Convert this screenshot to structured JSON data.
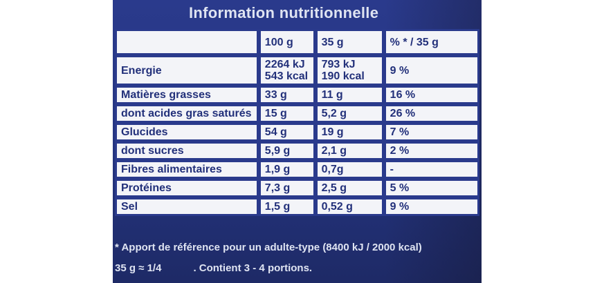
{
  "title": "Information nutritionnelle",
  "columns": [
    "",
    "100 g",
    "35 g",
    "% * / 35 g"
  ],
  "rows": [
    {
      "label": "Energie",
      "v100": [
        "2264 kJ",
        "543 kcal"
      ],
      "v35": [
        "793 kJ",
        "190 kcal"
      ],
      "pct": "9 %"
    },
    {
      "label": "Matières grasses",
      "v100": [
        "33 g"
      ],
      "v35": [
        "11 g"
      ],
      "pct": "16 %"
    },
    {
      "label": "dont acides gras saturés",
      "v100": [
        "15 g"
      ],
      "v35": [
        "5,2 g"
      ],
      "pct": "26 %"
    },
    {
      "label": "Glucides",
      "v100": [
        "54 g"
      ],
      "v35": [
        "19 g"
      ],
      "pct": "7 %"
    },
    {
      "label": "dont sucres",
      "v100": [
        "5,9 g"
      ],
      "v35": [
        "2,1 g"
      ],
      "pct": "2 %"
    },
    {
      "label": "Fibres alimentaires",
      "v100": [
        "1,9 g"
      ],
      "v35": [
        "0,7g"
      ],
      "pct": "-"
    },
    {
      "label": "Protéines",
      "v100": [
        "7,3 g"
      ],
      "v35": [
        "2,5 g"
      ],
      "pct": "5 %"
    },
    {
      "label": "Sel",
      "v100": [
        "1,5 g"
      ],
      "v35": [
        "0,52 g"
      ],
      "pct": "9 %"
    }
  ],
  "footnote": "* Apport de référence pour un adulte-type (8400 kJ / 2000 kcal)",
  "portion_left": "35 g ≈ 1/4",
  "portion_right": ". Contient 3 - 4 portions.",
  "colors": {
    "panel": "#2a3a8c",
    "cell": "#f3f4f8",
    "text": "#22307a",
    "light_text": "#dfe4f2"
  }
}
